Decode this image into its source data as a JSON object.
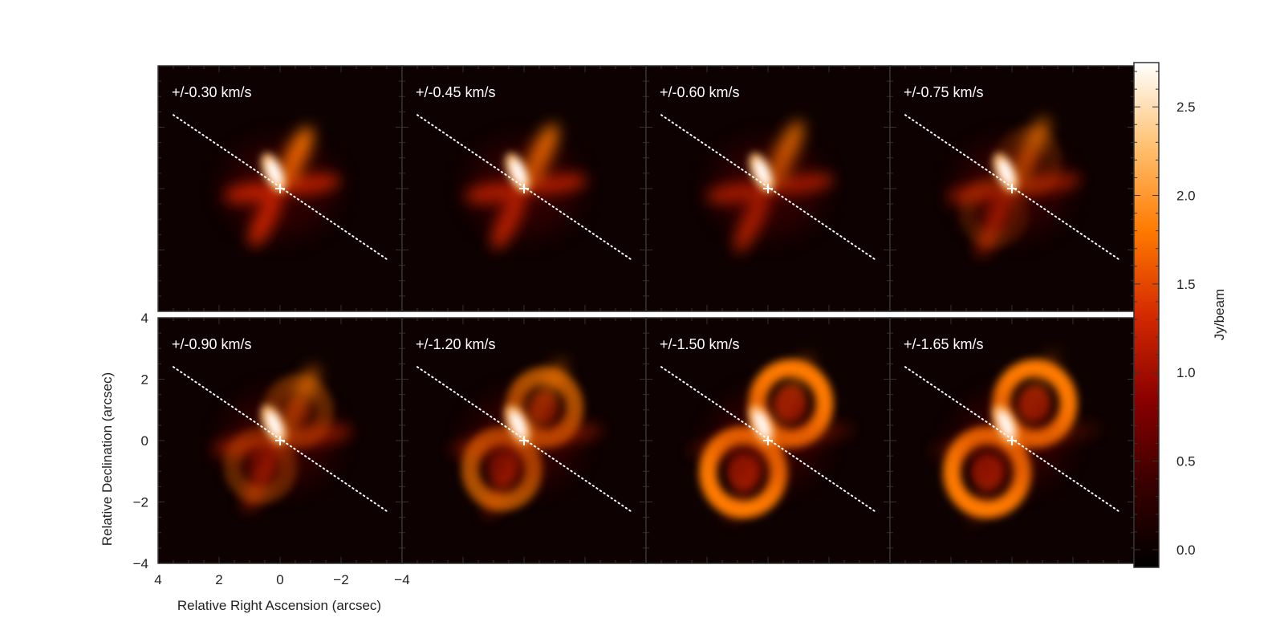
{
  "chart_data": {
    "type": "heatmap",
    "layout": {
      "rows": 2,
      "cols": 4
    },
    "panels": [
      {
        "label": "+/-0.30 km/s",
        "velocity": 0.3
      },
      {
        "label": "+/-0.45 km/s",
        "velocity": 0.45
      },
      {
        "label": "+/-0.60 km/s",
        "velocity": 0.6
      },
      {
        "label": "+/-0.75 km/s",
        "velocity": 0.75
      },
      {
        "label": "+/-0.90 km/s",
        "velocity": 0.9
      },
      {
        "label": "+/-1.20 km/s",
        "velocity": 1.2
      },
      {
        "label": "+/-1.50 km/s",
        "velocity": 1.5
      },
      {
        "label": "+/-1.65 km/s",
        "velocity": 1.65
      }
    ],
    "xlabel": "Relative Right Ascension (arcsec)",
    "ylabel": "Relative Declination (arcsec)",
    "xlim": [
      4,
      -4
    ],
    "ylim": [
      -4,
      4
    ],
    "xticks": [
      4,
      2,
      0,
      -2,
      -4
    ],
    "yticks": [
      -4,
      -2,
      0,
      2,
      4
    ],
    "xtick_labels": [
      "4",
      "2",
      "0",
      "−2",
      "−4"
    ],
    "ytick_labels": [
      "−4",
      "−2",
      "0",
      "2",
      "4"
    ],
    "colorbar": {
      "label": "Jy/beam",
      "range": [
        -0.1,
        2.75
      ],
      "ticks": [
        0.0,
        0.5,
        1.0,
        1.5,
        2.0,
        2.5
      ],
      "tick_labels": [
        "0.0",
        "0.5",
        "1.0",
        "1.5",
        "2.0",
        "2.5"
      ],
      "colormap": [
        "#000000",
        "#3a0000",
        "#8b0000",
        "#d42a00",
        "#ff7a00",
        "#ffc070",
        "#ffffff"
      ]
    },
    "center_marker": {
      "x": 0,
      "y": 0,
      "symbol": "+"
    },
    "dotted_line": {
      "from": [
        3.5,
        2.4
      ],
      "to": [
        -3.5,
        -2.3
      ]
    }
  }
}
